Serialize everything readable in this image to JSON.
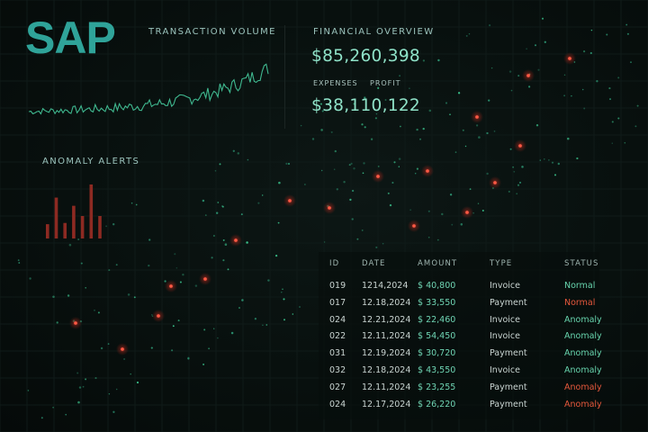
{
  "logo": "SAP",
  "transaction_volume": {
    "label": "TRANSACTION VOLUME"
  },
  "financial_overview": {
    "label": "FINANCIAL OVERVIEW",
    "revenue": "$85,260,398",
    "expenses_label": "EXPENSES",
    "profit_label": "PROFIT",
    "expenses_value": "$38,110,122"
  },
  "anomaly_alerts": {
    "label": "ANOMALY ALERTS",
    "bar_values": [
      0.35,
      1.0,
      0.38,
      0.8,
      0.55,
      1.32,
      0.55
    ]
  },
  "colors": {
    "accent": "#2fa399",
    "value_text": "#8fe2c8",
    "alert_red": "#e6583c",
    "normal_green": "#67d4ad"
  },
  "table": {
    "headers": [
      "ID",
      "DATE",
      "AMOUNT",
      "TYPE",
      "STATUS"
    ],
    "rows": [
      {
        "id": "019",
        "date": "1214,2024",
        "amount": "$ 40,800",
        "type": "Invoice",
        "status": "Normal",
        "alert": false
      },
      {
        "id": "017",
        "date": "12.18,2024",
        "amount": "$ 33,550",
        "type": "Payment",
        "status": "Normal",
        "alert": true
      },
      {
        "id": "024",
        "date": "12.21,2024",
        "amount": "$ 22,460",
        "type": "Invoice",
        "status": "Anomaly",
        "alert": false
      },
      {
        "id": "022",
        "date": "12.11,2024",
        "amount": "$ 54,450",
        "type": "Invoice",
        "status": "Anomaly",
        "alert": false
      },
      {
        "id": "031",
        "date": "12.19,2024",
        "amount": "$ 30,720",
        "type": "Payment",
        "status": "Anomaly",
        "alert": false
      },
      {
        "id": "032",
        "date": "12.18,2024",
        "amount": "$ 43,550",
        "type": "Invoice",
        "status": "Anomaly",
        "alert": false
      },
      {
        "id": "027",
        "date": "12.11,2024",
        "amount": "$ 23,255",
        "type": "Payment",
        "status": "Anomaly",
        "alert": true
      },
      {
        "id": "024",
        "date": "12.17,2024",
        "amount": "$ 26,220",
        "type": "Payment",
        "status": "Anomaly",
        "alert": true
      }
    ]
  }
}
